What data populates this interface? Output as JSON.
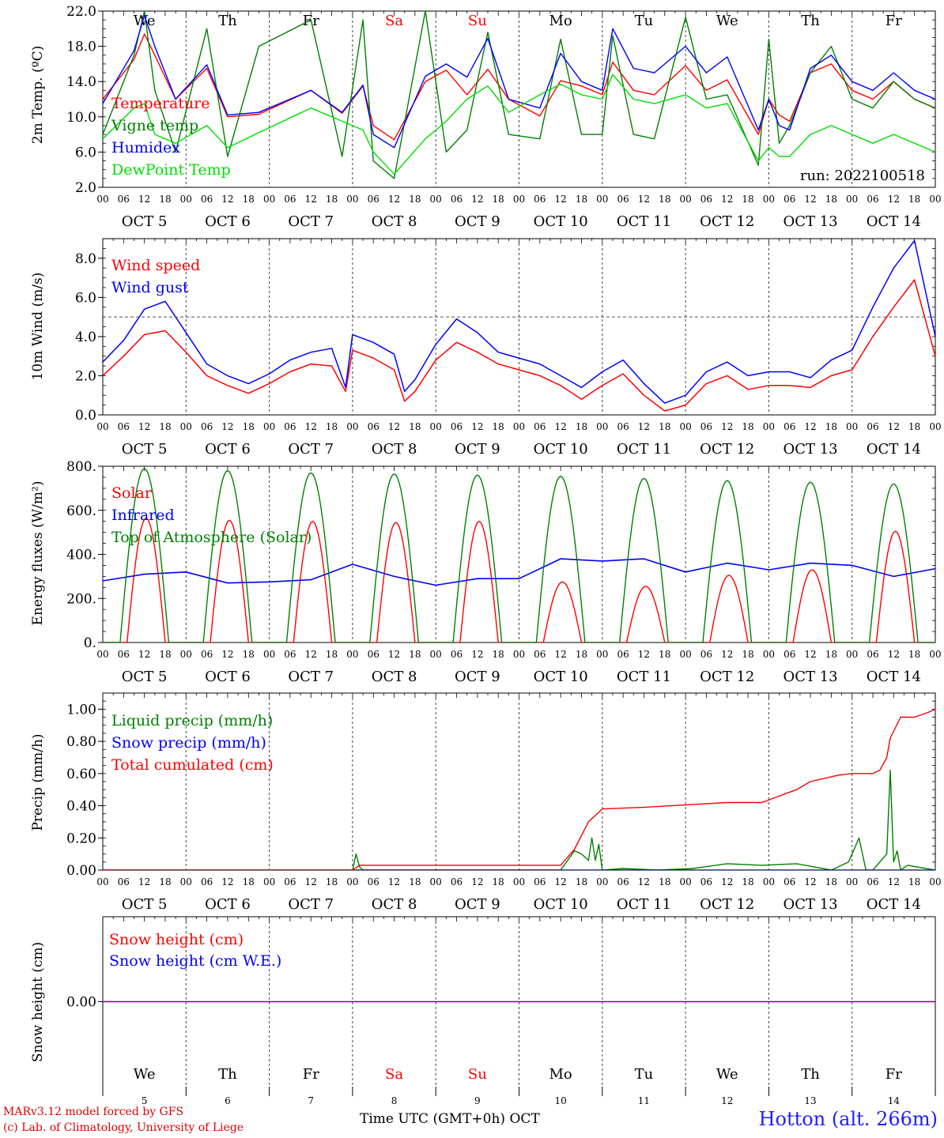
{
  "chart_data": [
    {
      "type": "line",
      "panel": "temperature",
      "ylabel": "2m Temp. (ºC)",
      "ylim": [
        2.0,
        22.0
      ],
      "yticks": [
        "2.0",
        "6.0",
        "10.0",
        "14.0",
        "18.0",
        "22.0"
      ],
      "run_label": "run: 2022100518",
      "x_hours": [
        0,
        9,
        12,
        15,
        21,
        30,
        36,
        45,
        60,
        69,
        75,
        78,
        84,
        93,
        99,
        105,
        111,
        117,
        126,
        132,
        138,
        144,
        147,
        153,
        159,
        168,
        174,
        180,
        189,
        192,
        195,
        198,
        204,
        210,
        216,
        222,
        228,
        234,
        240
      ],
      "series": [
        {
          "name": "Temperature",
          "color": "#ff0000",
          "values": [
            12.0,
            16.5,
            19.4,
            17.0,
            12.0,
            15.5,
            10.0,
            10.3,
            13.0,
            10.4,
            13.5,
            9.0,
            7.4,
            14.0,
            15.3,
            12.5,
            15.4,
            12.0,
            10.1,
            14.1,
            13.5,
            12.5,
            16.2,
            13.0,
            12.5,
            15.8,
            13.0,
            14.2,
            8.0,
            12.0,
            10.2,
            9.5,
            15.0,
            16.0,
            13.0,
            12.0,
            14.0,
            12.0,
            11.0
          ]
        },
        {
          "name": "Vigne temp",
          "color": "#008000",
          "values": [
            8.0,
            17.0,
            22.0,
            13.0,
            6.0,
            20.0,
            5.5,
            18.0,
            21.0,
            5.5,
            21.0,
            5.0,
            3.0,
            22.0,
            6.0,
            8.5,
            19.6,
            8.0,
            7.5,
            18.8,
            8.0,
            8.0,
            19.2,
            8.0,
            7.5,
            21.3,
            12.0,
            12.5,
            4.5,
            18.8,
            7.0,
            9.0,
            15.0,
            18.0,
            12.0,
            11.0,
            14.0,
            12.0,
            11.0
          ]
        },
        {
          "name": "Humidex",
          "color": "#0000ff",
          "values": [
            11.5,
            17.5,
            21.5,
            18.0,
            12.0,
            15.9,
            10.2,
            10.5,
            13.0,
            10.5,
            13.6,
            8.0,
            6.5,
            14.6,
            16.0,
            14.5,
            18.9,
            12.0,
            11.0,
            17.2,
            14.0,
            13.0,
            20.0,
            15.5,
            15.0,
            18.0,
            15.0,
            16.8,
            8.5,
            12.0,
            9.0,
            8.5,
            15.5,
            17.0,
            14.0,
            13.0,
            15.0,
            13.0,
            12.0
          ]
        },
        {
          "name": "DewPoint Temp",
          "color": "#00dd00",
          "values": [
            7.5,
            11.0,
            11.5,
            8.0,
            7.0,
            9.0,
            6.5,
            8.2,
            11.0,
            9.5,
            8.5,
            6.0,
            3.5,
            7.5,
            9.5,
            12.0,
            13.5,
            10.5,
            12.5,
            13.7,
            12.5,
            12.0,
            14.8,
            12.0,
            11.5,
            12.5,
            11.0,
            11.5,
            5.0,
            6.5,
            5.5,
            5.5,
            8.0,
            9.0,
            8.0,
            7.0,
            8.0,
            7.0,
            6.0
          ]
        }
      ]
    },
    {
      "type": "line",
      "panel": "wind",
      "ylabel": "10m Wind (m/s)",
      "ylim": [
        0.0,
        9.0
      ],
      "yticks": [
        "0.0",
        "2.0",
        "4.0",
        "6.0",
        "8.0"
      ],
      "reference_line": 5.0,
      "x_hours": [
        0,
        6,
        12,
        18,
        24,
        30,
        36,
        42,
        48,
        54,
        60,
        66,
        70,
        72,
        78,
        84,
        87,
        90,
        96,
        102,
        108,
        114,
        120,
        126,
        132,
        138,
        144,
        150,
        156,
        162,
        168,
        174,
        180,
        186,
        192,
        198,
        204,
        210,
        216,
        222,
        228,
        234,
        240
      ],
      "series": [
        {
          "name": "Wind speed",
          "color": "#ff0000",
          "values": [
            2.0,
            3.0,
            4.1,
            4.3,
            3.2,
            2.0,
            1.5,
            1.1,
            1.6,
            2.2,
            2.6,
            2.5,
            1.2,
            3.3,
            2.9,
            2.3,
            0.7,
            1.2,
            2.8,
            3.7,
            3.2,
            2.6,
            2.3,
            2.0,
            1.5,
            0.8,
            1.5,
            2.1,
            1.0,
            0.2,
            0.5,
            1.6,
            2.0,
            1.3,
            1.5,
            1.5,
            1.4,
            2.0,
            2.3,
            4.0,
            5.5,
            6.9,
            3.0
          ]
        },
        {
          "name": "Wind gust",
          "color": "#0000ff",
          "values": [
            2.7,
            3.8,
            5.4,
            5.8,
            4.2,
            2.6,
            2.0,
            1.6,
            2.1,
            2.8,
            3.2,
            3.4,
            1.4,
            4.1,
            3.7,
            3.1,
            1.2,
            1.8,
            3.6,
            4.9,
            4.2,
            3.2,
            2.9,
            2.6,
            2.0,
            1.4,
            2.2,
            2.8,
            1.6,
            0.6,
            1.0,
            2.2,
            2.7,
            2.0,
            2.2,
            2.2,
            1.9,
            2.8,
            3.3,
            5.5,
            7.5,
            8.9,
            4.0
          ]
        }
      ]
    },
    {
      "type": "line",
      "panel": "energy",
      "ylabel": "Energy fluxes (W/m²)",
      "ylim": [
        0,
        800
      ],
      "yticks": [
        "0.",
        "200.",
        "400.",
        "600.",
        "800."
      ],
      "series": [
        {
          "name": "Solar",
          "color": "#ff0000",
          "daily_peaks": [
            565,
            555,
            550,
            545,
            550,
            275,
            255,
            305,
            330,
            505
          ]
        },
        {
          "name": "Infrared",
          "color": "#0000ff",
          "x_hours": [
            0,
            12,
            24,
            36,
            48,
            60,
            72,
            84,
            96,
            108,
            120,
            132,
            144,
            156,
            168,
            180,
            192,
            204,
            216,
            228,
            240
          ],
          "values": [
            280,
            310,
            320,
            270,
            275,
            285,
            355,
            300,
            260,
            290,
            290,
            380,
            370,
            380,
            320,
            360,
            330,
            360,
            350,
            300,
            335
          ]
        },
        {
          "name": "Top of Atmosphere (Solar)",
          "color": "#008000",
          "daily_peaks": [
            790,
            780,
            770,
            765,
            760,
            755,
            745,
            735,
            728,
            720
          ]
        }
      ]
    },
    {
      "type": "line",
      "panel": "precip",
      "ylabel": "Precip (mm/h)",
      "ylim": [
        0.0,
        1.1
      ],
      "yticks": [
        "0.00",
        "0.20",
        "0.40",
        "0.60",
        "0.80",
        "1.00"
      ],
      "series": [
        {
          "name": "Liquid precip (mm/h)",
          "color": "#008000",
          "x_hours": [
            0,
            72,
            73,
            74,
            75,
            76,
            132,
            134,
            136,
            138,
            140,
            141,
            142,
            143,
            144,
            150,
            160,
            170,
            180,
            190,
            200,
            210,
            215,
            218,
            220,
            222,
            226,
            227,
            228,
            229,
            230,
            232,
            240
          ],
          "values": [
            0,
            0,
            0.1,
            0.02,
            0,
            0,
            0,
            0.06,
            0.12,
            0.1,
            0.06,
            0.2,
            0.06,
            0.16,
            0,
            0.01,
            0,
            0.01,
            0.04,
            0.03,
            0.04,
            0,
            0.05,
            0.2,
            0,
            0,
            0.1,
            0.62,
            0.05,
            0.12,
            0,
            0.03,
            0
          ]
        },
        {
          "name": "Snow precip (mm/h)",
          "color": "#0000ff",
          "x_hours": [
            0,
            240
          ],
          "values": [
            0,
            0
          ]
        },
        {
          "name": "Total cumulated (cm)",
          "color": "#ff0000",
          "x_hours": [
            0,
            72,
            74,
            132,
            136,
            140,
            144,
            156,
            180,
            184,
            190,
            200,
            204,
            212,
            216,
            222,
            224,
            226,
            227,
            230,
            234,
            238,
            240
          ],
          "values": [
            0,
            0,
            0.03,
            0.03,
            0.13,
            0.3,
            0.38,
            0.39,
            0.42,
            0.42,
            0.42,
            0.5,
            0.55,
            0.59,
            0.6,
            0.6,
            0.62,
            0.7,
            0.82,
            0.95,
            0.95,
            0.98,
            1.0
          ]
        }
      ]
    },
    {
      "type": "line",
      "panel": "snow",
      "ylabel": "Snow height (cm)",
      "yticks": [
        "0.00"
      ],
      "series": [
        {
          "name": "Snow height (cm)",
          "color": "#ff0000",
          "x_hours": [
            0,
            240
          ],
          "values": [
            0,
            0
          ]
        },
        {
          "name": "Snow height (cm W.E.)",
          "color": "#0000ff",
          "x_hours": [
            0,
            240
          ],
          "values": [
            0,
            0
          ]
        }
      ]
    }
  ],
  "days": [
    {
      "abbr": "We",
      "weekend": false,
      "date_label": "OCT  5",
      "num": "5"
    },
    {
      "abbr": "Th",
      "weekend": false,
      "date_label": "OCT  6",
      "num": "6"
    },
    {
      "abbr": "Fr",
      "weekend": false,
      "date_label": "OCT  7",
      "num": "7"
    },
    {
      "abbr": "Sa",
      "weekend": true,
      "date_label": "OCT  8",
      "num": "8"
    },
    {
      "abbr": "Su",
      "weekend": true,
      "date_label": "OCT  9",
      "num": "9"
    },
    {
      "abbr": "Mo",
      "weekend": false,
      "date_label": "OCT 10",
      "num": "10"
    },
    {
      "abbr": "Tu",
      "weekend": false,
      "date_label": "OCT 11",
      "num": "11"
    },
    {
      "abbr": "We",
      "weekend": false,
      "date_label": "OCT 12",
      "num": "12"
    },
    {
      "abbr": "Th",
      "weekend": false,
      "date_label": "OCT 13",
      "num": "13"
    },
    {
      "abbr": "Fr",
      "weekend": false,
      "date_label": "OCT 14",
      "num": "14"
    }
  ],
  "hour_ticks": [
    "00",
    "06",
    "12",
    "18"
  ],
  "last_hour_tick": "00",
  "footer": {
    "credit_line1": "MARv3.12 model forced by GFS",
    "credit_line2": "(c) Lab. of Climatology, University of Liege",
    "time_axis_label": "Time UTC (GMT+0h) OCT",
    "station": "Hotton (alt. 266m)"
  },
  "colors": {
    "weekday": "#000000",
    "weekend": "#ff0000",
    "snow_zero_line": "#8000a0"
  }
}
